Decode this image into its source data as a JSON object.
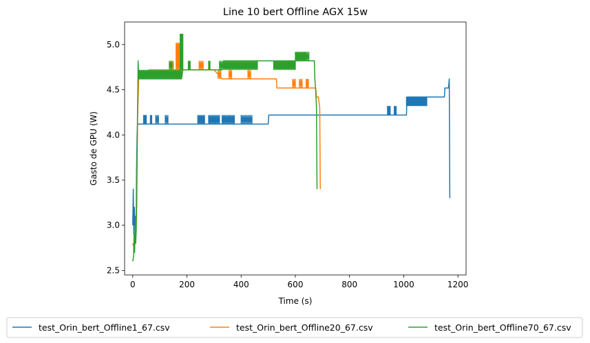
{
  "chart_data": {
    "type": "line",
    "title": "Line 10 bert Offline AGX 15w",
    "xlabel": "Time (s)",
    "ylabel": "Gasto de GPU (W)",
    "xlim": [
      -30,
      1230
    ],
    "ylim": [
      2.45,
      5.25
    ],
    "xticks": [
      0,
      200,
      400,
      600,
      800,
      1000,
      1200
    ],
    "yticks": [
      2.5,
      3.0,
      3.5,
      4.0,
      4.5,
      5.0
    ],
    "xtick_labels": [
      "0",
      "200",
      "400",
      "600",
      "800",
      "1000",
      "1200"
    ],
    "ytick_labels": [
      "2.5",
      "3.0",
      "3.5",
      "4.0",
      "4.5",
      "5.0"
    ],
    "grid": false,
    "legend_position": "below-center",
    "series": [
      {
        "name": "test_Orin_bert_Offline1_67.csv",
        "color": "#1f77b4",
        "base": [
          [
            0,
            3.0
          ],
          [
            2,
            3.4
          ],
          [
            4,
            2.9
          ],
          [
            6,
            3.2
          ],
          [
            8,
            3.0
          ],
          [
            10,
            3.1
          ],
          [
            12,
            2.9
          ],
          [
            14,
            3.6
          ],
          [
            16,
            4.0
          ],
          [
            18,
            4.12
          ],
          [
            40,
            4.12
          ],
          [
            60,
            4.12
          ],
          [
            100,
            4.12
          ],
          [
            150,
            4.12
          ],
          [
            200,
            4.12
          ],
          [
            250,
            4.12
          ],
          [
            300,
            4.12
          ],
          [
            400,
            4.12
          ],
          [
            500,
            4.12
          ],
          [
            502,
            4.22
          ],
          [
            700,
            4.22
          ],
          [
            900,
            4.22
          ],
          [
            1010,
            4.22
          ],
          [
            1012,
            4.42
          ],
          [
            1150,
            4.42
          ],
          [
            1152,
            4.52
          ],
          [
            1165,
            4.52
          ],
          [
            1168,
            4.62
          ],
          [
            1170,
            3.3
          ]
        ],
        "bursts": [
          [
            40,
            50,
            4.12,
            4.22,
            3
          ],
          [
            65,
            70,
            4.12,
            4.22,
            2
          ],
          [
            85,
            95,
            4.12,
            4.22,
            2
          ],
          [
            120,
            130,
            4.12,
            4.22,
            2
          ],
          [
            240,
            265,
            4.12,
            4.22,
            6
          ],
          [
            280,
            320,
            4.12,
            4.22,
            9
          ],
          [
            330,
            375,
            4.12,
            4.22,
            10
          ],
          [
            400,
            440,
            4.12,
            4.22,
            8
          ],
          [
            940,
            950,
            4.22,
            4.32,
            3
          ],
          [
            965,
            972,
            4.22,
            4.32,
            2
          ],
          [
            1010,
            1085,
            4.32,
            4.42,
            22
          ]
        ]
      },
      {
        "name": "test_Orin_bert_Offline20_67.csv",
        "color": "#ff7f0e",
        "base": [
          [
            0,
            2.8
          ],
          [
            5,
            2.75
          ],
          [
            8,
            2.9
          ],
          [
            10,
            3.0
          ],
          [
            12,
            2.95
          ],
          [
            15,
            3.5
          ],
          [
            18,
            4.2
          ],
          [
            20,
            4.4
          ],
          [
            22,
            4.62
          ],
          [
            40,
            4.62
          ],
          [
            60,
            4.72
          ],
          [
            180,
            4.72
          ],
          [
            190,
            4.72
          ],
          [
            300,
            4.72
          ],
          [
            330,
            4.62
          ],
          [
            400,
            4.62
          ],
          [
            530,
            4.62
          ],
          [
            532,
            4.52
          ],
          [
            675,
            4.52
          ],
          [
            678,
            4.42
          ],
          [
            685,
            4.42
          ],
          [
            690,
            4.3
          ],
          [
            692,
            3.4
          ]
        ],
        "bursts": [
          [
            140,
            150,
            4.72,
            4.82,
            2
          ],
          [
            160,
            175,
            4.72,
            5.02,
            4
          ],
          [
            245,
            260,
            4.72,
            4.82,
            3
          ],
          [
            315,
            325,
            4.62,
            4.72,
            2
          ],
          [
            355,
            365,
            4.62,
            4.72,
            2
          ],
          [
            425,
            435,
            4.62,
            4.72,
            2
          ],
          [
            590,
            600,
            4.52,
            4.62,
            2
          ],
          [
            615,
            625,
            4.52,
            4.62,
            2
          ],
          [
            640,
            648,
            4.52,
            4.62,
            2
          ]
        ]
      },
      {
        "name": "test_Orin_bert_Offline70_67.csv",
        "color": "#2ca02c",
        "base": [
          [
            0,
            2.6
          ],
          [
            3,
            2.65
          ],
          [
            5,
            2.9
          ],
          [
            7,
            2.7
          ],
          [
            9,
            3.0
          ],
          [
            11,
            2.8
          ],
          [
            13,
            2.95
          ],
          [
            15,
            3.3
          ],
          [
            17,
            4.1
          ],
          [
            19,
            4.55
          ],
          [
            20,
            4.82
          ],
          [
            22,
            4.62
          ],
          [
            180,
            4.62
          ],
          [
            185,
            4.72
          ],
          [
            330,
            4.72
          ],
          [
            335,
            4.82
          ],
          [
            670,
            4.82
          ],
          [
            672,
            4.62
          ],
          [
            675,
            4.5
          ],
          [
            678,
            4.3
          ],
          [
            680,
            3.4
          ]
        ],
        "bursts": [
          [
            20,
            180,
            4.62,
            4.72,
            40
          ],
          [
            135,
            145,
            4.72,
            4.82,
            2
          ],
          [
            175,
            185,
            4.72,
            5.12,
            5
          ],
          [
            205,
            212,
            4.72,
            4.82,
            2
          ],
          [
            280,
            285,
            4.72,
            4.82,
            2
          ],
          [
            320,
            330,
            4.72,
            4.82,
            2
          ],
          [
            335,
            460,
            4.72,
            4.82,
            30
          ],
          [
            520,
            600,
            4.72,
            4.82,
            20
          ],
          [
            600,
            640,
            4.82,
            4.92,
            10
          ],
          [
            640,
            650,
            4.82,
            4.92,
            2
          ]
        ]
      }
    ]
  }
}
